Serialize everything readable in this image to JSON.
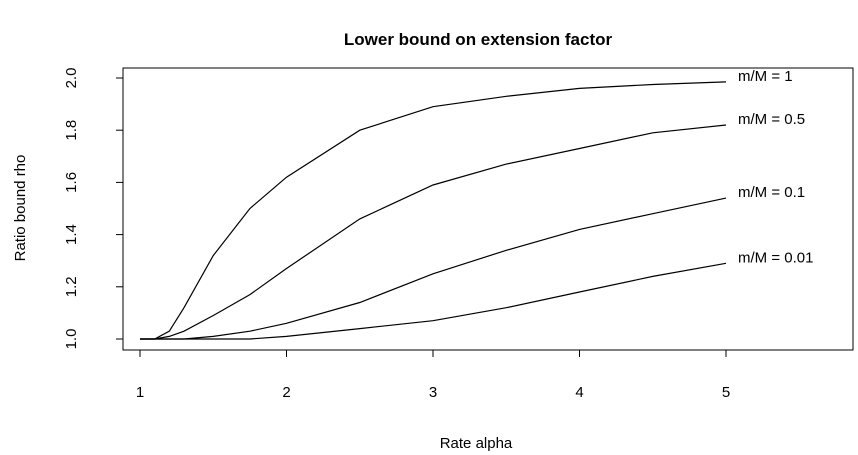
{
  "chart_data": {
    "type": "line",
    "title": "Lower bound on extension factor",
    "xlabel": "Rate alpha",
    "ylabel": "Ratio bound rho",
    "xlim": [
      1,
      5
    ],
    "ylim": [
      1.0,
      2.0
    ],
    "x_ticks": [
      "1",
      "2",
      "3",
      "4",
      "5"
    ],
    "y_ticks": [
      "1.0",
      "1.2",
      "1.4",
      "1.6",
      "1.8",
      "2.0"
    ],
    "grid": false,
    "line_color": "#000000",
    "x": [
      1.0,
      1.1,
      1.2,
      1.3,
      1.5,
      1.75,
      2.0,
      2.5,
      3.0,
      3.5,
      4.0,
      4.5,
      5.0
    ],
    "series": [
      {
        "name": "m/M = 1",
        "values": [
          1.0,
          1.0,
          1.03,
          1.12,
          1.32,
          1.5,
          1.62,
          1.8,
          1.89,
          1.93,
          1.96,
          1.975,
          1.985
        ]
      },
      {
        "name": "m/M = 0.5",
        "values": [
          1.0,
          1.0,
          1.01,
          1.03,
          1.09,
          1.17,
          1.27,
          1.46,
          1.59,
          1.67,
          1.73,
          1.79,
          1.82
        ]
      },
      {
        "name": "m/M = 0.1",
        "values": [
          1.0,
          1.0,
          1.0,
          1.0,
          1.01,
          1.03,
          1.06,
          1.14,
          1.25,
          1.34,
          1.42,
          1.48,
          1.54
        ]
      },
      {
        "name": "m/M = 0.01",
        "values": [
          1.0,
          1.0,
          1.0,
          1.0,
          1.0,
          1.0,
          1.01,
          1.04,
          1.07,
          1.12,
          1.18,
          1.24,
          1.29
        ]
      }
    ]
  }
}
